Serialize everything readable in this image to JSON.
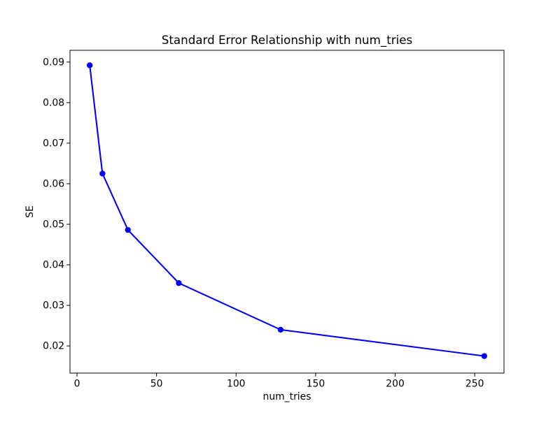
{
  "chart_data": {
    "type": "line",
    "title": "Standard Error Relationship with num_tries",
    "xlabel": "num_tries",
    "ylabel": "SE",
    "x": [
      8,
      16,
      32,
      64,
      128,
      256
    ],
    "y": [
      0.0892,
      0.0625,
      0.0486,
      0.0355,
      0.024,
      0.0175
    ],
    "line_color": "#0000ff",
    "marker": "circle",
    "xlim": [
      -4.4,
      268.4
    ],
    "ylim": [
      0.0133,
      0.0929
    ],
    "x_tick_values": [
      0,
      50,
      100,
      150,
      200,
      250
    ],
    "x_tick_labels": [
      "0",
      "50",
      "100",
      "150",
      "200",
      "250"
    ],
    "y_tick_values": [
      0.02,
      0.03,
      0.04,
      0.05,
      0.06,
      0.07,
      0.08,
      0.09
    ],
    "y_tick_labels": [
      "0.02",
      "0.03",
      "0.04",
      "0.05",
      "0.06",
      "0.07",
      "0.08",
      "0.09"
    ],
    "grid": false,
    "legend_position": "none",
    "background_color": "#ffffff",
    "spine_color": "#000000"
  }
}
